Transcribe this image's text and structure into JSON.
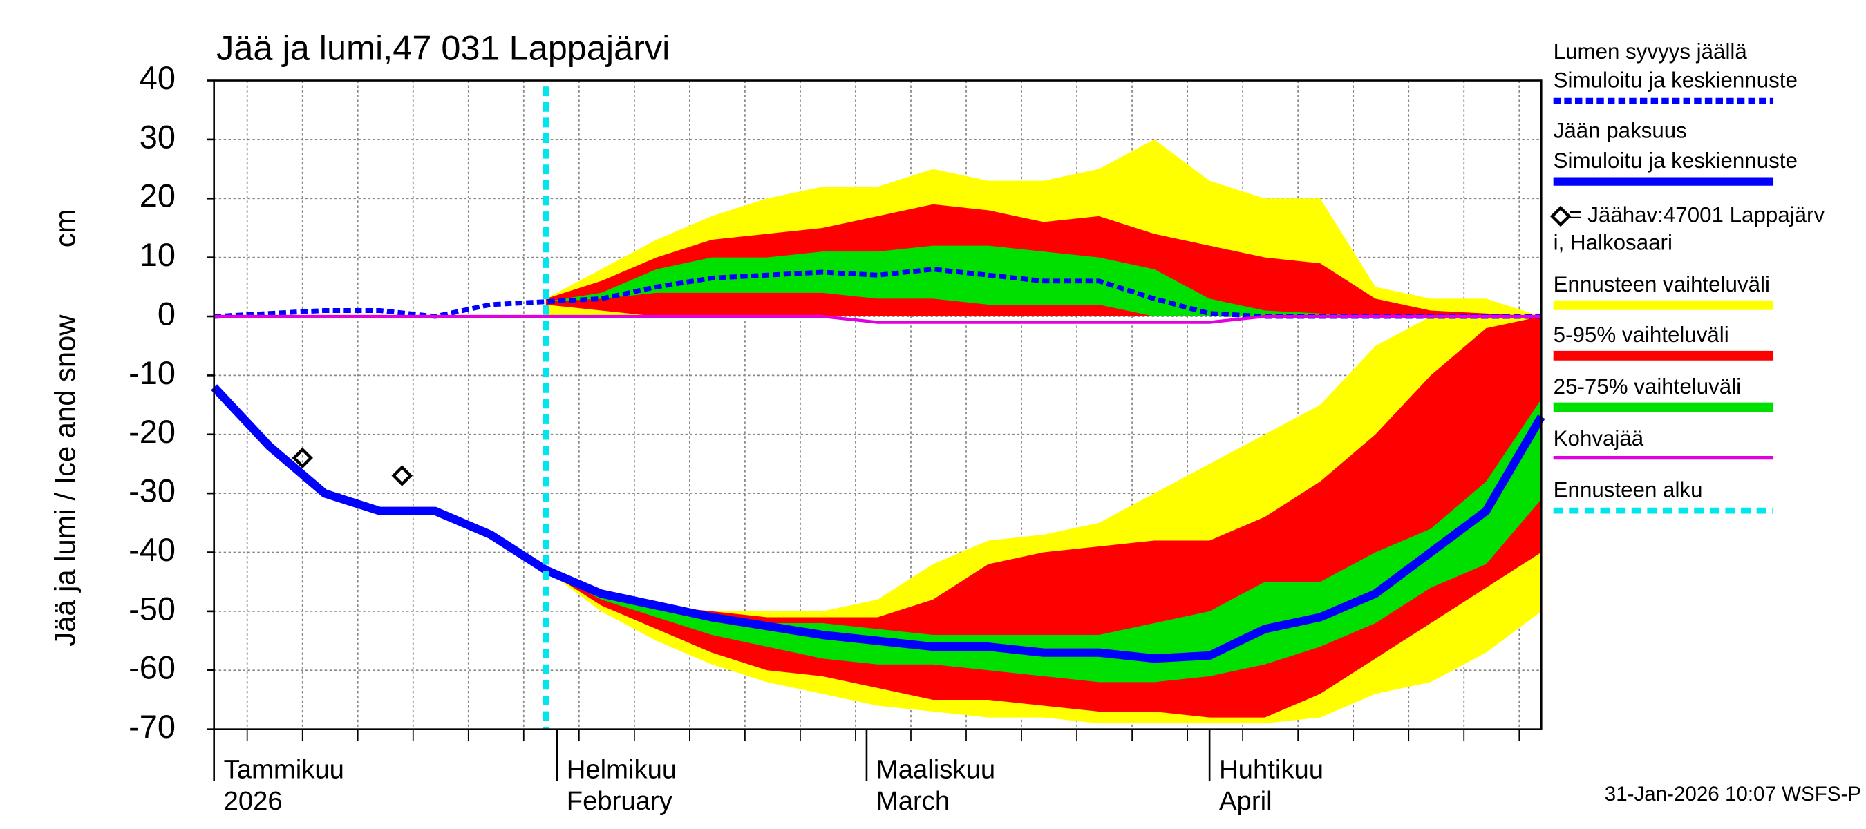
{
  "chart_data": {
    "type": "ice_snow",
    "title": "Jää ja lumi,47 031 Lappajärvi",
    "ylabel": "Jää ja lumi / Ice and snow",
    "yunit": "cm",
    "footer": "31-Jan-2026 10:07 WSFS-P",
    "xlim": [
      0,
      120
    ],
    "xticks": [
      {
        "value": 0,
        "label": "Tammikuu",
        "sublabel": "2026"
      },
      {
        "value": 31,
        "label": "Helmikuu",
        "sublabel": "February"
      },
      {
        "value": 59,
        "label": "Maaliskuu",
        "sublabel": "March"
      },
      {
        "value": 90,
        "label": "Huhtikuu",
        "sublabel": "April"
      }
    ],
    "xgrid": [
      3,
      8,
      13,
      18,
      23,
      28,
      33,
      38,
      43,
      48,
      53,
      58,
      63,
      68,
      73,
      78,
      83,
      88,
      93,
      98,
      103,
      108,
      113,
      118
    ],
    "ylim": [
      -70,
      40
    ],
    "yticks": [
      -70,
      -60,
      -50,
      -40,
      -30,
      -20,
      -10,
      0,
      10,
      20,
      30,
      40
    ],
    "grid": true,
    "forecast_start": {
      "name": "Ennusteen alku",
      "x": 30,
      "color": "#00e5ee"
    },
    "x": [
      0,
      5,
      10,
      15,
      20,
      25,
      30,
      35,
      40,
      45,
      50,
      55,
      60,
      65,
      70,
      75,
      80,
      85,
      90,
      95,
      100,
      105,
      110,
      115,
      120
    ],
    "bands": [
      {
        "name": "Ennusteen vaihteluväli",
        "color": "#ffff00",
        "snow_low": [
          null,
          null,
          null,
          null,
          null,
          null,
          0,
          0,
          0,
          0,
          0,
          0,
          0,
          0,
          0,
          0,
          0,
          0,
          0,
          0,
          0,
          0,
          0,
          0,
          0
        ],
        "snow_high": [
          null,
          null,
          null,
          null,
          null,
          null,
          3,
          8,
          13,
          17,
          20,
          22,
          22,
          25,
          23,
          23,
          25,
          30,
          23,
          20,
          20,
          5,
          3,
          3,
          0
        ],
        "ice_low": [
          null,
          null,
          null,
          null,
          null,
          null,
          -43,
          -50,
          -55,
          -59,
          -62,
          -64,
          -66,
          -67,
          -68,
          -68,
          -69,
          -69,
          -69,
          -69,
          -68,
          -64,
          -62,
          -57,
          -50
        ],
        "ice_high": [
          null,
          null,
          null,
          null,
          null,
          null,
          -43,
          -47,
          -49,
          -50,
          -50,
          -50,
          -48,
          -42,
          -38,
          -37,
          -35,
          -30,
          -25,
          -20,
          -15,
          -5,
          0,
          0,
          0
        ]
      },
      {
        "name": "5-95% vaihteluväli",
        "color": "#ff0000",
        "snow_low": [
          null,
          null,
          null,
          null,
          null,
          null,
          2,
          1,
          0,
          0,
          0,
          0,
          0,
          0,
          0,
          0,
          0,
          0,
          0,
          0,
          0,
          0,
          0,
          0,
          0
        ],
        "snow_high": [
          null,
          null,
          null,
          null,
          null,
          null,
          3,
          6,
          10,
          13,
          14,
          15,
          17,
          19,
          18,
          16,
          17,
          14,
          12,
          10,
          9,
          3,
          1,
          0.5,
          0
        ],
        "ice_low": [
          null,
          null,
          null,
          null,
          null,
          null,
          -43,
          -49,
          -53,
          -57,
          -60,
          -61,
          -63,
          -65,
          -65,
          -66,
          -67,
          -67,
          -68,
          -68,
          -64,
          -58,
          -52,
          -46,
          -40
        ],
        "ice_high": [
          null,
          null,
          null,
          null,
          null,
          null,
          -43,
          -47,
          -49,
          -50,
          -51,
          -51,
          -51,
          -48,
          -42,
          -40,
          -39,
          -38,
          -38,
          -34,
          -28,
          -20,
          -10,
          -2,
          0
        ]
      },
      {
        "name": "25-75% vaihteluväli",
        "color": "#00e000",
        "snow_low": [
          null,
          null,
          null,
          null,
          null,
          null,
          2.5,
          3,
          4,
          4,
          4,
          4,
          3,
          3,
          2,
          2,
          2,
          0,
          0,
          0,
          0,
          0,
          0,
          0,
          0
        ],
        "snow_high": [
          null,
          null,
          null,
          null,
          null,
          null,
          2.5,
          4,
          8,
          10,
          10,
          11,
          11,
          12,
          12,
          11,
          10,
          8,
          3,
          1,
          0.5,
          0,
          0,
          0,
          0
        ],
        "ice_low": [
          null,
          null,
          null,
          null,
          null,
          null,
          -43,
          -48,
          -51,
          -54,
          -56,
          -58,
          -59,
          -59,
          -60,
          -61,
          -62,
          -62,
          -61,
          -59,
          -56,
          -52,
          -46,
          -42,
          -31
        ],
        "ice_high": [
          null,
          null,
          null,
          null,
          null,
          null,
          -43,
          -47,
          -49,
          -51,
          -52,
          -52,
          -53,
          -54,
          -54,
          -54,
          -54,
          -52,
          -50,
          -45,
          -45,
          -40,
          -36,
          -28,
          -14
        ]
      }
    ],
    "series": [
      {
        "name": "Lumen syvyys jäällä",
        "name2": "Simuloitu ja keskiennuste",
        "color": "#0000ff",
        "style": "dashed",
        "values": [
          0,
          0.5,
          1,
          1,
          0,
          2,
          2.5,
          3,
          5,
          6.5,
          7,
          7.5,
          7,
          8,
          7,
          6,
          6,
          3,
          0.5,
          0,
          0,
          0,
          0,
          0,
          0
        ]
      },
      {
        "name": "Jään paksuus",
        "name2": "Simuloitu ja keskiennuste",
        "color": "#0000ff",
        "style": "solid",
        "values": [
          -12,
          -22,
          -30,
          -33,
          -33,
          -37,
          -43,
          -47,
          -49,
          -51,
          -52.5,
          -54,
          -55,
          -56,
          -56,
          -57,
          -57,
          -58,
          -57.5,
          -53,
          -51,
          -47,
          -40,
          -33,
          -17
        ]
      },
      {
        "name": "Kohvajää",
        "color": "#e000e0",
        "style": "thin",
        "values": [
          0,
          0,
          0,
          0,
          0,
          0,
          0,
          0,
          0,
          0,
          0,
          0,
          -1,
          -1,
          -1,
          -1,
          -1,
          -1,
          -1,
          0,
          0,
          0,
          0,
          0,
          0
        ]
      }
    ],
    "observations": {
      "name": "= Jäähav:47001 Lappajärv",
      "name2": "i, Halkosaari",
      "x": [
        8,
        17
      ],
      "values": [
        -24,
        -27
      ]
    }
  }
}
